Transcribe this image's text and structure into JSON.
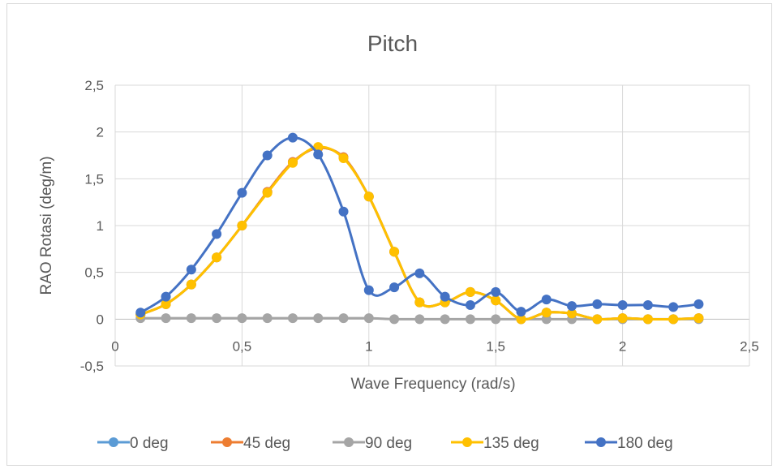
{
  "chart_data": {
    "type": "line",
    "title": "Pitch",
    "xlabel": "Wave Frequency (rad/s)",
    "ylabel": "RAO Rotasi (deg/m)",
    "xlim": [
      0,
      2.5
    ],
    "ylim": [
      -0.5,
      2.5
    ],
    "x_ticks": [
      "0",
      "0,5",
      "1",
      "1,5",
      "2",
      "2,5"
    ],
    "y_ticks": [
      "-0,5",
      "0",
      "0,5",
      "1",
      "1,5",
      "2",
      "2,5"
    ],
    "grid": true,
    "legend_position": "bottom",
    "x": [
      0.1,
      0.2,
      0.3,
      0.4,
      0.5,
      0.6,
      0.7,
      0.8,
      0.9,
      1.0,
      1.1,
      1.2,
      1.3,
      1.4,
      1.5,
      1.6,
      1.7,
      1.8,
      1.9,
      2.0,
      2.1,
      2.2,
      2.3
    ],
    "series": [
      {
        "name": "0 deg",
        "color": "#5B9BD5",
        "values": [
          0.05,
          0.16,
          0.37,
          0.66,
          1.0,
          1.36,
          1.68,
          1.83,
          1.73,
          1.31,
          0.72,
          0.18,
          0.18,
          0.29,
          0.2,
          0.0,
          0.07,
          0.06,
          0.0,
          0.01,
          0.0,
          0.0,
          0.01
        ]
      },
      {
        "name": "45 deg",
        "color": "#ED7D31",
        "values": [
          0.05,
          0.16,
          0.37,
          0.66,
          1.0,
          1.36,
          1.68,
          1.83,
          1.73,
          1.31,
          0.72,
          0.18,
          0.18,
          0.29,
          0.2,
          0.0,
          0.07,
          0.06,
          0.0,
          0.01,
          0.0,
          0.0,
          0.01
        ]
      },
      {
        "name": "90 deg",
        "color": "#A5A5A5",
        "values": [
          0.01,
          0.01,
          0.01,
          0.01,
          0.01,
          0.01,
          0.01,
          0.01,
          0.01,
          0.01,
          0.0,
          0.0,
          0.0,
          0.0,
          0.0,
          0.0,
          0.0,
          0.0,
          0.0,
          0.0,
          0.0,
          0.0,
          0.0
        ]
      },
      {
        "name": "135 deg",
        "color": "#FFC000",
        "values": [
          0.05,
          0.16,
          0.37,
          0.66,
          1.0,
          1.35,
          1.67,
          1.84,
          1.72,
          1.31,
          0.72,
          0.18,
          0.18,
          0.29,
          0.2,
          0.0,
          0.07,
          0.06,
          0.0,
          0.01,
          0.0,
          0.0,
          0.01
        ]
      },
      {
        "name": "180 deg",
        "color": "#4472C4",
        "values": [
          0.07,
          0.24,
          0.53,
          0.91,
          1.35,
          1.75,
          1.94,
          1.76,
          1.15,
          0.31,
          0.34,
          0.49,
          0.24,
          0.15,
          0.29,
          0.08,
          0.21,
          0.14,
          0.16,
          0.15,
          0.15,
          0.13,
          0.16
        ]
      }
    ]
  }
}
